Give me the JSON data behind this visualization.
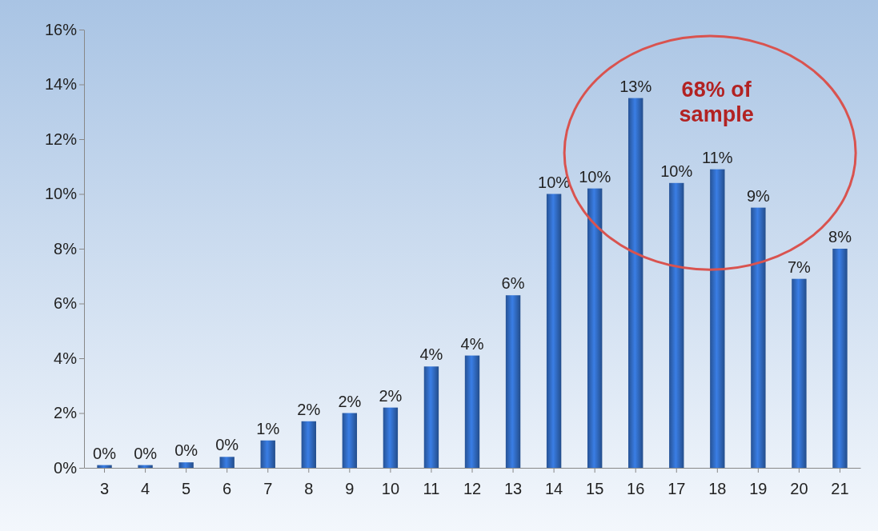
{
  "chart_data": {
    "type": "bar",
    "categories": [
      "3",
      "4",
      "5",
      "6",
      "7",
      "8",
      "9",
      "10",
      "11",
      "12",
      "13",
      "14",
      "15",
      "16",
      "17",
      "18",
      "19",
      "20",
      "21"
    ],
    "values": [
      0.1,
      0.1,
      0.2,
      0.4,
      1.0,
      1.7,
      2.0,
      2.2,
      3.7,
      4.1,
      6.3,
      10.0,
      10.2,
      13.5,
      10.4,
      10.9,
      9.5,
      6.9,
      8.0
    ],
    "value_labels": [
      "0%",
      "0%",
      "0%",
      "0%",
      "1%",
      "2%",
      "2%",
      "2%",
      "4%",
      "4%",
      "6%",
      "10%",
      "10%",
      "13%",
      "10%",
      "11%",
      "9%",
      "7%",
      "8%"
    ],
    "color": "#2f66b9",
    "ylim": [
      0,
      16
    ],
    "yticks": [
      {
        "value": 0,
        "label": "0%"
      },
      {
        "value": 2,
        "label": "2%"
      },
      {
        "value": 4,
        "label": "4%"
      },
      {
        "value": 6,
        "label": "6%"
      },
      {
        "value": 8,
        "label": "8%"
      },
      {
        "value": 10,
        "label": "10%"
      },
      {
        "value": 12,
        "label": "12%"
      },
      {
        "value": 14,
        "label": "14%"
      },
      {
        "value": 16,
        "label": "16%"
      }
    ],
    "annotations": [
      "68% of sample"
    ],
    "grid": false
  }
}
